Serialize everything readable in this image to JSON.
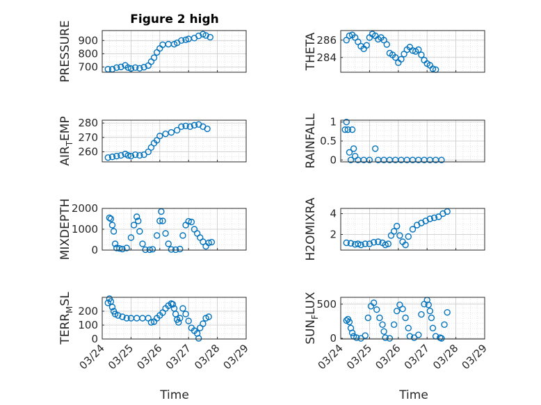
{
  "figure_title": "Figure 2 high",
  "xlabel": "Time",
  "x_ticklabels": [
    "03/24",
    "03/25",
    "03/26",
    "03/27",
    "03/28",
    "03/29"
  ],
  "marker_color": "#0072BD",
  "chart_data": [
    {
      "type": "scatter",
      "ylabel": "PRESSURE",
      "title": "Figure 2 high",
      "xlim": [
        0,
        5
      ],
      "ylim": [
        660,
        975
      ],
      "yticks": [
        700,
        800,
        900
      ],
      "grid": true,
      "points": [
        [
          0.2,
          683
        ],
        [
          0.35,
          683
        ],
        [
          0.5,
          695
        ],
        [
          0.65,
          700
        ],
        [
          0.8,
          712
        ],
        [
          0.9,
          695
        ],
        [
          1.0,
          688
        ],
        [
          1.15,
          695
        ],
        [
          1.3,
          690
        ],
        [
          1.45,
          698
        ],
        [
          1.6,
          710
        ],
        [
          1.7,
          740
        ],
        [
          1.8,
          770
        ],
        [
          1.9,
          810
        ],
        [
          2.0,
          840
        ],
        [
          2.1,
          868
        ],
        [
          2.3,
          872
        ],
        [
          2.5,
          872
        ],
        [
          2.6,
          882
        ],
        [
          2.75,
          900
        ],
        [
          2.9,
          905
        ],
        [
          3.0,
          912
        ],
        [
          3.2,
          918
        ],
        [
          3.35,
          935
        ],
        [
          3.5,
          948
        ],
        [
          3.6,
          938
        ],
        [
          3.75,
          925
        ]
      ]
    },
    {
      "type": "scatter",
      "ylabel": "THETA",
      "xlim": [
        0,
        5
      ],
      "ylim": [
        282.3,
        287.1
      ],
      "yticks": [
        284,
        286
      ],
      "grid": true,
      "points": [
        [
          0.2,
          286.0
        ],
        [
          0.3,
          286.5
        ],
        [
          0.4,
          286.6
        ],
        [
          0.5,
          286.3
        ],
        [
          0.6,
          285.8
        ],
        [
          0.7,
          285.3
        ],
        [
          0.8,
          285.0
        ],
        [
          0.9,
          285.4
        ],
        [
          1.0,
          286.3
        ],
        [
          1.1,
          286.7
        ],
        [
          1.2,
          286.5
        ],
        [
          1.3,
          286.1
        ],
        [
          1.4,
          286.3
        ],
        [
          1.5,
          286.0
        ],
        [
          1.6,
          285.5
        ],
        [
          1.7,
          284.5
        ],
        [
          1.8,
          284.3
        ],
        [
          1.9,
          284.0
        ],
        [
          2.0,
          283.4
        ],
        [
          2.1,
          283.8
        ],
        [
          2.2,
          284.4
        ],
        [
          2.3,
          284.9
        ],
        [
          2.4,
          285.2
        ],
        [
          2.5,
          284.8
        ],
        [
          2.6,
          284.7
        ],
        [
          2.7,
          284.9
        ],
        [
          2.8,
          284.3
        ],
        [
          2.9,
          283.7
        ],
        [
          3.0,
          283.3
        ],
        [
          3.1,
          283.1
        ],
        [
          3.2,
          282.7
        ],
        [
          3.3,
          282.6
        ]
      ]
    },
    {
      "type": "scatter",
      "ylabel": "AIR_TEMP",
      "xlim": [
        0,
        5
      ],
      "ylim": [
        253,
        282
      ],
      "yticks": [
        260,
        270,
        280
      ],
      "grid": true,
      "points": [
        [
          0.2,
          256
        ],
        [
          0.35,
          256.5
        ],
        [
          0.5,
          257
        ],
        [
          0.65,
          257.5
        ],
        [
          0.8,
          258.5
        ],
        [
          0.9,
          257.5
        ],
        [
          1.0,
          257
        ],
        [
          1.15,
          258
        ],
        [
          1.3,
          257.5
        ],
        [
          1.45,
          258
        ],
        [
          1.6,
          260
        ],
        [
          1.7,
          263
        ],
        [
          1.8,
          266
        ],
        [
          1.9,
          268
        ],
        [
          2.0,
          271
        ],
        [
          2.2,
          272.5
        ],
        [
          2.4,
          273.5
        ],
        [
          2.6,
          275
        ],
        [
          2.75,
          277.5
        ],
        [
          2.9,
          278
        ],
        [
          3.05,
          277.5
        ],
        [
          3.2,
          278.5
        ],
        [
          3.35,
          279
        ],
        [
          3.5,
          277.5
        ],
        [
          3.65,
          276
        ]
      ]
    },
    {
      "type": "scatter",
      "ylabel": "RAINFALL",
      "xlim": [
        0,
        5
      ],
      "ylim": [
        -0.05,
        1.05
      ],
      "yticks": [
        0,
        0.5,
        1
      ],
      "grid": true,
      "points": [
        [
          0.15,
          0.8
        ],
        [
          0.2,
          1.0
        ],
        [
          0.25,
          0.8
        ],
        [
          0.3,
          0.2
        ],
        [
          0.35,
          0.0
        ],
        [
          0.4,
          0.8
        ],
        [
          0.45,
          0.3
        ],
        [
          0.5,
          0.1
        ],
        [
          0.6,
          0.0
        ],
        [
          0.8,
          0.0
        ],
        [
          1.0,
          0.0
        ],
        [
          1.2,
          0.3
        ],
        [
          1.3,
          0.0
        ],
        [
          1.5,
          0.0
        ],
        [
          1.7,
          0.0
        ],
        [
          1.9,
          0.0
        ],
        [
          2.1,
          0.0
        ],
        [
          2.3,
          0.0
        ],
        [
          2.5,
          0.0
        ],
        [
          2.7,
          0.0
        ],
        [
          2.9,
          0.0
        ],
        [
          3.1,
          0.0
        ],
        [
          3.3,
          0.0
        ],
        [
          3.5,
          0.0
        ]
      ]
    },
    {
      "type": "scatter",
      "ylabel": "MIXDEPTH",
      "xlim": [
        0,
        5
      ],
      "ylim": [
        0,
        2000
      ],
      "yticks": [
        0,
        1000,
        2000
      ],
      "grid": true,
      "points": [
        [
          0.25,
          1550
        ],
        [
          0.3,
          1500
        ],
        [
          0.35,
          1200
        ],
        [
          0.4,
          900
        ],
        [
          0.45,
          300
        ],
        [
          0.5,
          100
        ],
        [
          0.6,
          80
        ],
        [
          0.7,
          50
        ],
        [
          0.85,
          100
        ],
        [
          1.0,
          600
        ],
        [
          1.1,
          1200
        ],
        [
          1.2,
          1600
        ],
        [
          1.25,
          1400
        ],
        [
          1.3,
          900
        ],
        [
          1.4,
          300
        ],
        [
          1.5,
          20
        ],
        [
          1.65,
          20
        ],
        [
          1.75,
          40
        ],
        [
          1.9,
          700
        ],
        [
          2.0,
          1400
        ],
        [
          2.05,
          1850
        ],
        [
          2.1,
          1400
        ],
        [
          2.2,
          800
        ],
        [
          2.3,
          300
        ],
        [
          2.4,
          30
        ],
        [
          2.55,
          20
        ],
        [
          2.7,
          50
        ],
        [
          2.8,
          700
        ],
        [
          2.9,
          1200
        ],
        [
          3.0,
          1380
        ],
        [
          3.1,
          1350
        ],
        [
          3.2,
          1000
        ],
        [
          3.3,
          800
        ],
        [
          3.4,
          600
        ],
        [
          3.5,
          400
        ],
        [
          3.6,
          180
        ],
        [
          3.7,
          350
        ],
        [
          3.8,
          380
        ]
      ]
    },
    {
      "type": "scatter",
      "ylabel": "H2OMIXRA",
      "xlim": [
        0,
        5
      ],
      "ylim": [
        0.5,
        4.5
      ],
      "yticks": [
        2,
        4
      ],
      "grid": true,
      "points": [
        [
          0.2,
          1.2
        ],
        [
          0.35,
          1.15
        ],
        [
          0.5,
          1.05
        ],
        [
          0.6,
          1.1
        ],
        [
          0.7,
          1.0
        ],
        [
          0.85,
          1.1
        ],
        [
          1.0,
          1.1
        ],
        [
          1.15,
          1.25
        ],
        [
          1.3,
          1.3
        ],
        [
          1.45,
          1.2
        ],
        [
          1.55,
          1.0
        ],
        [
          1.65,
          1.1
        ],
        [
          1.75,
          1.9
        ],
        [
          1.85,
          2.3
        ],
        [
          1.95,
          2.8
        ],
        [
          2.05,
          1.9
        ],
        [
          2.15,
          1.3
        ],
        [
          2.25,
          1.0
        ],
        [
          2.35,
          1.8
        ],
        [
          2.5,
          2.5
        ],
        [
          2.65,
          2.9
        ],
        [
          2.8,
          3.1
        ],
        [
          2.95,
          3.3
        ],
        [
          3.1,
          3.5
        ],
        [
          3.25,
          3.6
        ],
        [
          3.4,
          3.7
        ],
        [
          3.55,
          4.0
        ],
        [
          3.7,
          4.2
        ]
      ]
    },
    {
      "type": "scatter",
      "ylabel": "TERR_MSL",
      "xlim": [
        0,
        5
      ],
      "ylim": [
        0,
        300
      ],
      "yticks": [
        0,
        100,
        200
      ],
      "grid": true,
      "points": [
        [
          0.2,
          260
        ],
        [
          0.25,
          290
        ],
        [
          0.3,
          270
        ],
        [
          0.35,
          230
        ],
        [
          0.4,
          200
        ],
        [
          0.45,
          180
        ],
        [
          0.55,
          170
        ],
        [
          0.7,
          160
        ],
        [
          0.85,
          150
        ],
        [
          1.0,
          150
        ],
        [
          1.2,
          150
        ],
        [
          1.4,
          150
        ],
        [
          1.6,
          150
        ],
        [
          1.7,
          120
        ],
        [
          1.8,
          125
        ],
        [
          1.9,
          150
        ],
        [
          2.0,
          170
        ],
        [
          2.1,
          190
        ],
        [
          2.2,
          220
        ],
        [
          2.3,
          240
        ],
        [
          2.4,
          255
        ],
        [
          2.45,
          250
        ],
        [
          2.5,
          220
        ],
        [
          2.55,
          180
        ],
        [
          2.6,
          140
        ],
        [
          2.65,
          120
        ],
        [
          2.7,
          150
        ],
        [
          2.8,
          220
        ],
        [
          2.9,
          180
        ],
        [
          3.0,
          130
        ],
        [
          3.1,
          80
        ],
        [
          3.2,
          60
        ],
        [
          3.3,
          40
        ],
        [
          3.35,
          5
        ],
        [
          3.4,
          80
        ],
        [
          3.5,
          110
        ],
        [
          3.6,
          150
        ],
        [
          3.7,
          160
        ]
      ]
    },
    {
      "type": "scatter",
      "ylabel": "SUN_FLUX",
      "xlim": [
        0,
        5
      ],
      "ylim": [
        -10,
        600
      ],
      "yticks": [
        0,
        500
      ],
      "grid": true,
      "points": [
        [
          0.2,
          260
        ],
        [
          0.25,
          280
        ],
        [
          0.3,
          240
        ],
        [
          0.35,
          150
        ],
        [
          0.4,
          80
        ],
        [
          0.45,
          30
        ],
        [
          0.55,
          10
        ],
        [
          0.7,
          0
        ],
        [
          0.85,
          40
        ],
        [
          0.95,
          300
        ],
        [
          1.05,
          470
        ],
        [
          1.15,
          520
        ],
        [
          1.25,
          420
        ],
        [
          1.35,
          300
        ],
        [
          1.45,
          200
        ],
        [
          1.5,
          100
        ],
        [
          1.55,
          10
        ],
        [
          1.7,
          0
        ],
        [
          1.85,
          200
        ],
        [
          1.95,
          400
        ],
        [
          2.05,
          490
        ],
        [
          2.15,
          430
        ],
        [
          2.25,
          300
        ],
        [
          2.35,
          150
        ],
        [
          2.4,
          30
        ],
        [
          2.55,
          10
        ],
        [
          2.7,
          50
        ],
        [
          2.8,
          350
        ],
        [
          2.9,
          500
        ],
        [
          3.0,
          560
        ],
        [
          3.05,
          490
        ],
        [
          3.1,
          400
        ],
        [
          3.15,
          300
        ],
        [
          3.2,
          150
        ],
        [
          3.3,
          30
        ],
        [
          3.45,
          10
        ],
        [
          3.5,
          0
        ],
        [
          3.6,
          200
        ],
        [
          3.7,
          380
        ]
      ]
    }
  ],
  "ylabel_parts": [
    {
      "base": "PRESSURE",
      "sub": ""
    },
    {
      "base": "THETA",
      "sub": ""
    },
    {
      "pre": "AIR",
      "sub": "T",
      "post": "EMP"
    },
    {
      "base": "RAINFALL",
      "sub": ""
    },
    {
      "base": "MIXDEPTH",
      "sub": ""
    },
    {
      "base": "H2OMIXRA",
      "sub": ""
    },
    {
      "pre": "TERR",
      "sub": "M",
      "post": "SL"
    },
    {
      "pre": "SUN",
      "sub": "F",
      "post": "LUX"
    }
  ]
}
